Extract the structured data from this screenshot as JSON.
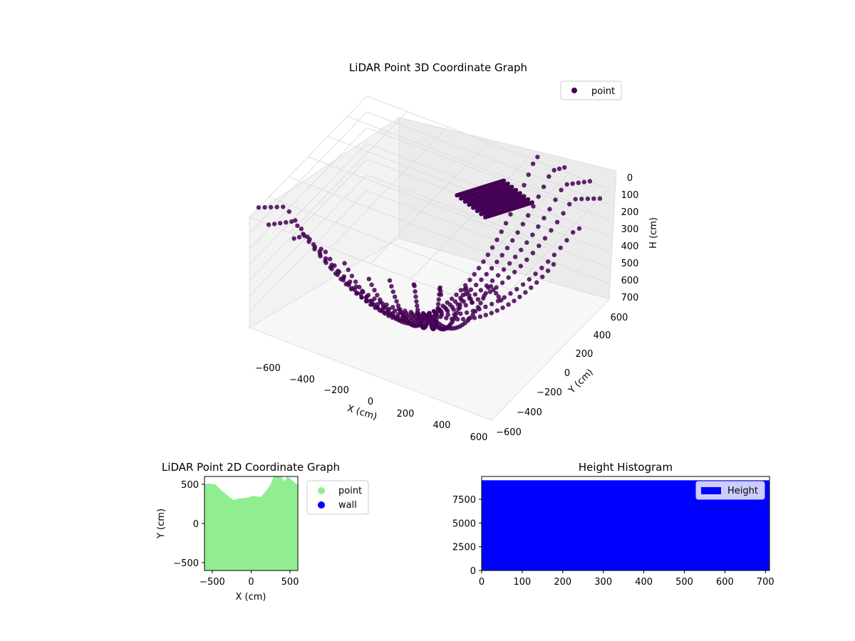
{
  "figure": {
    "background": "#ffffff",
    "point_color": "#440154",
    "point_color_2d": "#90ee90",
    "wall_color": "#0000ff",
    "hist_color": "#0000ff"
  },
  "chart_data": [
    {
      "type": "scatter",
      "projection": "3d",
      "title": "LiDAR Point 3D Coordinate Graph",
      "xlabel": "X (cm)",
      "ylabel": "Y (cm)",
      "zlabel": "H (cm)",
      "xticks": [
        "−600",
        "−400",
        "−200",
        "0",
        "200",
        "400",
        "600"
      ],
      "yticks": [
        "−600",
        "−400",
        "−200",
        "0",
        "200",
        "400",
        "600"
      ],
      "zticks": [
        "0",
        "100",
        "200",
        "300",
        "400",
        "500",
        "600",
        "700"
      ],
      "xlim": [
        -600,
        600
      ],
      "ylim": [
        -600,
        600
      ],
      "zlim": [
        0,
        700
      ],
      "z_inverted": true,
      "grid": true,
      "legend": {
        "position": "top-right",
        "entries": [
          {
            "label": "point",
            "color": "#440154",
            "marker": "circle"
          }
        ]
      },
      "series": [
        {
          "name": "point",
          "color": "#440154",
          "arcs_deg": [
            -140,
            -130,
            -120,
            -110,
            -100,
            -90,
            -80,
            -70,
            -60,
            -50,
            -40,
            0,
            20,
            40,
            50,
            60,
            70
          ],
          "arc_length": 800,
          "description": "points ordered along arcs radiating from the origin; each arc rises from ground (H=0 near the origin) to ~H=600 at radius ~600 cm"
        }
      ]
    },
    {
      "type": "scatter",
      "title": "LiDAR Point 2D Coordinate Graph",
      "xlabel": "X (cm)",
      "ylabel": "Y (cm)",
      "xticks": [
        -500,
        0,
        500
      ],
      "yticks": [
        -500,
        0,
        500
      ],
      "xlim": [
        -600,
        600
      ],
      "ylim": [
        -600,
        600
      ],
      "legend": {
        "position": "outside-right",
        "entries": [
          {
            "label": "point",
            "color": "#90ee90"
          },
          {
            "label": "wall",
            "color": "#0000ff"
          }
        ]
      },
      "series": [
        {
          "name": "point",
          "color": "#90ee90",
          "region_outline": [
            [
              -600,
              500
            ],
            [
              -540,
              510
            ],
            [
              -460,
              500
            ],
            [
              -380,
              420
            ],
            [
              -230,
              300
            ],
            [
              -150,
              320
            ],
            [
              -50,
              330
            ],
            [
              20,
              350
            ],
            [
              130,
              340
            ],
            [
              240,
              480
            ],
            [
              290,
              600
            ],
            [
              380,
              600
            ],
            [
              430,
              540
            ],
            [
              470,
              600
            ],
            [
              600,
              490
            ],
            [
              600,
              -600
            ],
            [
              -600,
              -600
            ]
          ]
        },
        {
          "name": "wall",
          "color": "#0000ff",
          "points": []
        }
      ]
    },
    {
      "type": "bar",
      "subtype": "histogram",
      "title": "Height Histogram",
      "xticks": [
        0,
        100,
        200,
        300,
        400,
        500,
        600,
        700
      ],
      "yticks": [
        0,
        2500,
        5000,
        7500
      ],
      "xlim": [
        0,
        710
      ],
      "ylim": [
        0,
        9900
      ],
      "legend": {
        "position": "top-right",
        "entries": [
          {
            "label": "Height",
            "color": "#0000ff"
          }
        ]
      },
      "series": [
        {
          "name": "Height",
          "color": "#0000ff",
          "bin_range": [
            0,
            710
          ],
          "value": 9500
        }
      ]
    }
  ]
}
